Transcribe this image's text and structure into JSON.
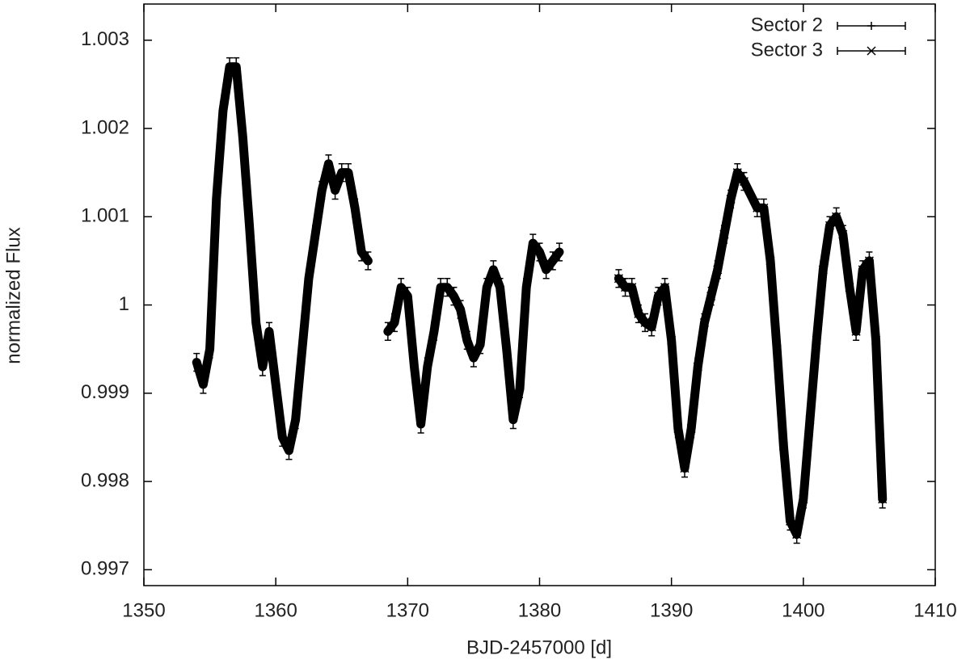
{
  "chart_data": {
    "type": "errorbar",
    "x_label": "BJD-2457000 [d]",
    "y_label": "normalized Flux",
    "xlim": [
      1350,
      1410
    ],
    "xticks": [
      1350,
      1360,
      1370,
      1380,
      1390,
      1400,
      1410
    ],
    "ylim": [
      0.99682,
      1.00341
    ],
    "yticks": [
      0.997,
      0.998,
      0.999,
      1,
      1.001,
      1.002,
      1.003
    ],
    "legend": "top-right",
    "series": [
      {
        "name": "Sector 2",
        "color": "#000000",
        "marker": "plus",
        "error": 0.0001,
        "x": [
          1354.0,
          1354.5,
          1355.0,
          1355.5,
          1356.0,
          1356.5,
          1357.0,
          1357.5,
          1358.0,
          1358.5,
          1359.0,
          1359.5,
          1360.0,
          1360.5,
          1361.0,
          1361.5,
          1362.0,
          1362.5,
          1363.0,
          1363.5,
          1364.0,
          1364.5,
          1365.0,
          1365.5,
          1366.0,
          1366.5,
          1367.0,
          1368.5,
          1369.0,
          1369.5,
          1370.0,
          1370.5,
          1371.0,
          1371.5,
          1372.0,
          1372.5,
          1373.0,
          1373.5,
          1374.0,
          1374.5,
          1375.0,
          1375.5,
          1376.0,
          1376.5,
          1377.0,
          1377.5,
          1378.0,
          1378.5,
          1379.0,
          1379.5,
          1380.0,
          1380.5,
          1381.0,
          1381.5
        ],
        "values": [
          0.99935,
          0.9991,
          0.9995,
          1.0012,
          1.0022,
          1.0027,
          1.0027,
          1.0019,
          1.0009,
          0.9998,
          0.9993,
          0.9997,
          0.9991,
          0.9985,
          0.99835,
          0.9987,
          0.9995,
          1.0003,
          1.0008,
          1.0013,
          1.0016,
          1.0013,
          1.0015,
          1.0015,
          1.0011,
          1.0006,
          1.0005,
          0.9997,
          0.9998,
          1.0002,
          1.0001,
          0.9993,
          0.99865,
          0.9993,
          0.9997,
          1.0002,
          1.0002,
          1.0001,
          0.99995,
          0.9996,
          0.9994,
          0.99955,
          1.0002,
          1.0004,
          1.0002,
          0.9995,
          0.9987,
          0.99905,
          1.0002,
          1.0007,
          1.0006,
          1.0004,
          1.0005,
          1.0006
        ]
      },
      {
        "name": "Sector 3",
        "color": "#000000",
        "marker": "cross",
        "error": 0.0001,
        "x": [
          1386.0,
          1386.5,
          1387.0,
          1387.5,
          1388.0,
          1388.5,
          1389.0,
          1389.5,
          1390.0,
          1390.5,
          1391.0,
          1391.5,
          1392.0,
          1392.5,
          1393.0,
          1393.5,
          1394.0,
          1394.5,
          1395.0,
          1395.5,
          1396.5,
          1397.0,
          1397.5,
          1398.0,
          1398.5,
          1399.0,
          1399.5,
          1400.0,
          1400.5,
          1401.0,
          1401.5,
          1402.0,
          1402.5,
          1403.0,
          1403.5,
          1404.0,
          1404.5,
          1405.0,
          1405.5,
          1406.0
        ],
        "values": [
          1.0003,
          1.0002,
          1.0002,
          0.9999,
          0.9998,
          0.99975,
          1.0001,
          1.0002,
          0.9996,
          0.9986,
          0.99815,
          0.9986,
          0.9993,
          0.9998,
          1.0001,
          1.0004,
          1.0008,
          1.0012,
          1.0015,
          1.0014,
          1.0011,
          1.0011,
          1.0005,
          0.9995,
          0.9984,
          0.99755,
          0.9974,
          0.9978,
          0.9987,
          0.9996,
          1.0004,
          1.0009,
          1.001,
          1.0008,
          1.0002,
          0.9997,
          1.0004,
          1.0005,
          0.9996,
          0.9978
        ]
      }
    ]
  }
}
